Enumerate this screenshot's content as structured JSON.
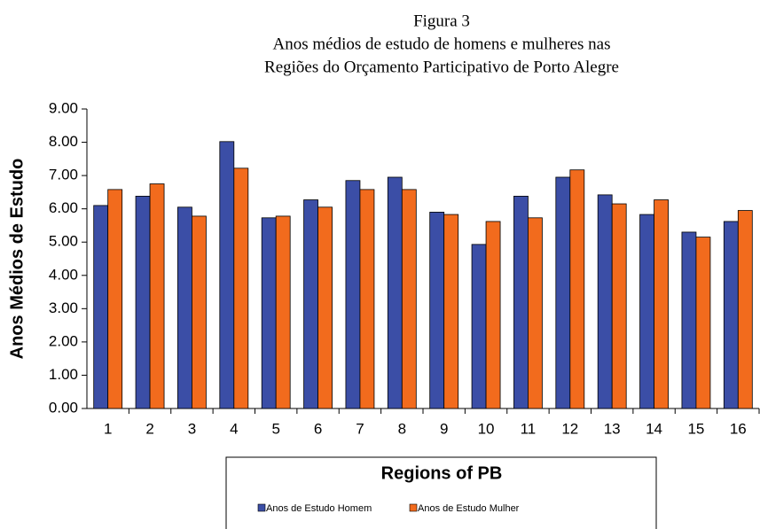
{
  "chart_data": {
    "type": "bar",
    "title": "Figura 3",
    "subtitle": [
      "Anos médios de estudo de homens e mulheres nas",
      "Regiões do Orçamento Participativo de Porto Alegre"
    ],
    "x_label": "Regions of PB",
    "y_label": "Anos Médios de Estudo",
    "categories": [
      "1",
      "2",
      "3",
      "4",
      "5",
      "6",
      "7",
      "8",
      "9",
      "10",
      "11",
      "12",
      "13",
      "14",
      "15",
      "16"
    ],
    "series": [
      {
        "name": "Anos de Estudo Homem",
        "color": "#3b4ea6",
        "values": [
          6.1,
          6.38,
          6.05,
          8.02,
          5.73,
          6.27,
          6.85,
          6.95,
          5.9,
          4.93,
          6.38,
          6.95,
          6.42,
          5.83,
          5.3,
          5.62
        ]
      },
      {
        "name": "Anos de Estudo Mulher",
        "color": "#f26b1d",
        "values": [
          6.58,
          6.75,
          5.78,
          7.22,
          5.78,
          6.05,
          6.58,
          6.58,
          5.83,
          5.62,
          5.73,
          7.17,
          6.15,
          6.27,
          5.15,
          5.95
        ]
      }
    ],
    "ylim": [
      0,
      9
    ],
    "yticks": [
      {
        "value": 0,
        "label": "0.00"
      },
      {
        "value": 1,
        "label": "1.00"
      },
      {
        "value": 2,
        "label": "2.00"
      },
      {
        "value": 3,
        "label": "3.00"
      },
      {
        "value": 4,
        "label": "4.00"
      },
      {
        "value": 5,
        "label": "5.00"
      },
      {
        "value": 6,
        "label": "6.00"
      },
      {
        "value": 7,
        "label": "7.00"
      },
      {
        "value": 8,
        "label": "8.00"
      },
      {
        "value": 9,
        "label": "9.00"
      }
    ],
    "legend": "bottom",
    "grid": false
  }
}
